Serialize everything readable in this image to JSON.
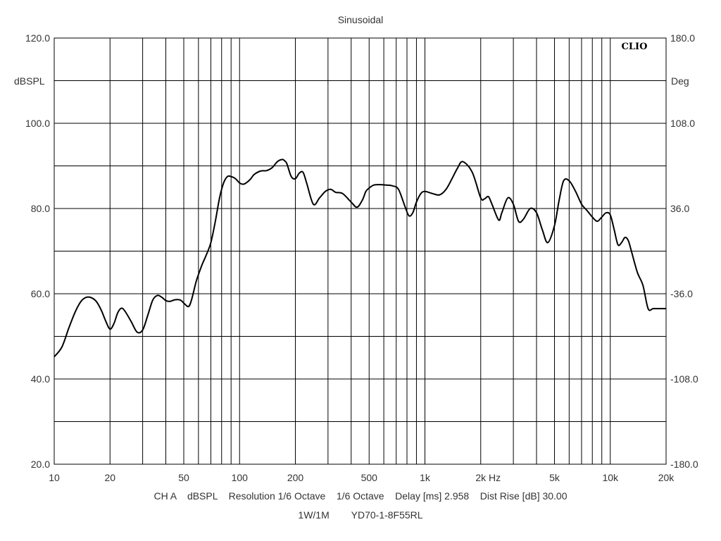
{
  "chart_data": {
    "type": "line",
    "title": "Sinusoidal",
    "watermark": "CLIO",
    "x_scale": "log",
    "xlim": [
      10,
      20000
    ],
    "ylim": [
      20,
      120
    ],
    "y2lim": [
      -180,
      180
    ],
    "ylabel": "dBSPL",
    "y2label": "Deg",
    "xlabel": "Hz",
    "grid": true,
    "line_color": "#000000",
    "x_ticks": [
      {
        "value": 10,
        "label": "10"
      },
      {
        "value": 20,
        "label": "20"
      },
      {
        "value": 50,
        "label": "50"
      },
      {
        "value": 100,
        "label": "100"
      },
      {
        "value": 200,
        "label": "200"
      },
      {
        "value": 500,
        "label": "500"
      },
      {
        "value": 1000,
        "label": "1k"
      },
      {
        "value": 2000,
        "label": "2k"
      },
      {
        "value": 5000,
        "label": "5k"
      },
      {
        "value": 10000,
        "label": "10k"
      },
      {
        "value": 20000,
        "label": "20k"
      }
    ],
    "y_ticks": [
      {
        "value": 20,
        "label": "20.0"
      },
      {
        "value": 40,
        "label": "40.0"
      },
      {
        "value": 60,
        "label": "60.0"
      },
      {
        "value": 80,
        "label": "80.0"
      },
      {
        "value": 100,
        "label": "100.0"
      },
      {
        "value": 120,
        "label": "120.0"
      }
    ],
    "y2_ticks": [
      {
        "value": -180,
        "label": "-180.0"
      },
      {
        "value": -108,
        "label": "-108.0"
      },
      {
        "value": -36,
        "label": "-36.0"
      },
      {
        "value": 36,
        "label": "36.0"
      },
      {
        "value": 108,
        "label": "108.0"
      },
      {
        "value": 180,
        "label": "180.0"
      }
    ],
    "series": [
      {
        "x": [
          10,
          11,
          12,
          13,
          14,
          15,
          16,
          17,
          18,
          19,
          20,
          21,
          22,
          23,
          24,
          26,
          28,
          30,
          32,
          34,
          36,
          38,
          40,
          42,
          45,
          48,
          50,
          53,
          55,
          58,
          60,
          63,
          66,
          70,
          74,
          78,
          82,
          86,
          90,
          95,
          100,
          105,
          110,
          115,
          120,
          130,
          140,
          150,
          160,
          170,
          175,
          180,
          190,
          200,
          210,
          220,
          230,
          250,
          270,
          290,
          310,
          330,
          360,
          400,
          430,
          460,
          480,
          500,
          530,
          570,
          620,
          670,
          720,
          780,
          820,
          860,
          900,
          950,
          1000,
          1100,
          1200,
          1300,
          1400,
          1500,
          1600,
          1800,
          2000,
          2100,
          2200,
          2300,
          2500,
          2600,
          2800,
          3000,
          3200,
          3400,
          3700,
          4000,
          4300,
          4600,
          5000,
          5300,
          5600,
          6000,
          6500,
          7000,
          7500,
          8000,
          8500,
          9000,
          9500,
          10000,
          10500,
          11000,
          11500,
          12000,
          12500,
          13000,
          14000,
          15000,
          16000,
          17000,
          18000,
          19000,
          20000
        ],
        "y": [
          45.2,
          47.5,
          52.0,
          55.8,
          58.3,
          59.2,
          59.0,
          58.0,
          56.0,
          53.5,
          51.7,
          53.0,
          55.5,
          56.6,
          56.0,
          53.5,
          51.0,
          51.5,
          55.0,
          58.5,
          59.6,
          59.2,
          58.4,
          58.2,
          58.6,
          58.5,
          57.8,
          57.0,
          58.5,
          62.5,
          64.5,
          67.0,
          69.0,
          72.0,
          77.0,
          82.5,
          86.0,
          87.5,
          87.5,
          87.0,
          86.0,
          85.7,
          86.2,
          87.0,
          88.0,
          88.8,
          88.9,
          89.6,
          91.0,
          91.5,
          91.2,
          90.5,
          87.5,
          87.0,
          88.3,
          88.5,
          86.0,
          81.0,
          82.5,
          84.0,
          84.5,
          83.8,
          83.5,
          81.5,
          80.3,
          82.0,
          84.0,
          84.8,
          85.5,
          85.6,
          85.5,
          85.3,
          84.5,
          80.5,
          78.3,
          79.0,
          81.5,
          83.5,
          84.0,
          83.5,
          83.2,
          84.5,
          87.0,
          89.5,
          91.0,
          88.5,
          82.5,
          82.3,
          82.8,
          81.0,
          77.3,
          79.0,
          82.5,
          81.0,
          77.0,
          77.5,
          80.0,
          79.0,
          75.0,
          72.0,
          76.0,
          82.0,
          86.5,
          86.5,
          84.0,
          81.0,
          79.5,
          78.0,
          77.0,
          78.0,
          79.0,
          78.5,
          75.0,
          71.5,
          72.0,
          73.2,
          72.5,
          70.0,
          65.0,
          62.0,
          56.5,
          56.5,
          56.5,
          56.5,
          56.5
        ],
        "y_note": "dBSPL"
      }
    ]
  },
  "footer": {
    "line1": {
      "channel": "CH A",
      "unit": "dBSPL",
      "resolution": "Resolution 1/6 Octave",
      "smoothing": "1/6 Octave",
      "delay": "Delay [ms] 2.958",
      "dist_rise": "Dist Rise [dB] 30.00"
    },
    "line2": {
      "level": "1W/1M",
      "model": "YD70-1-8F55RL"
    }
  }
}
